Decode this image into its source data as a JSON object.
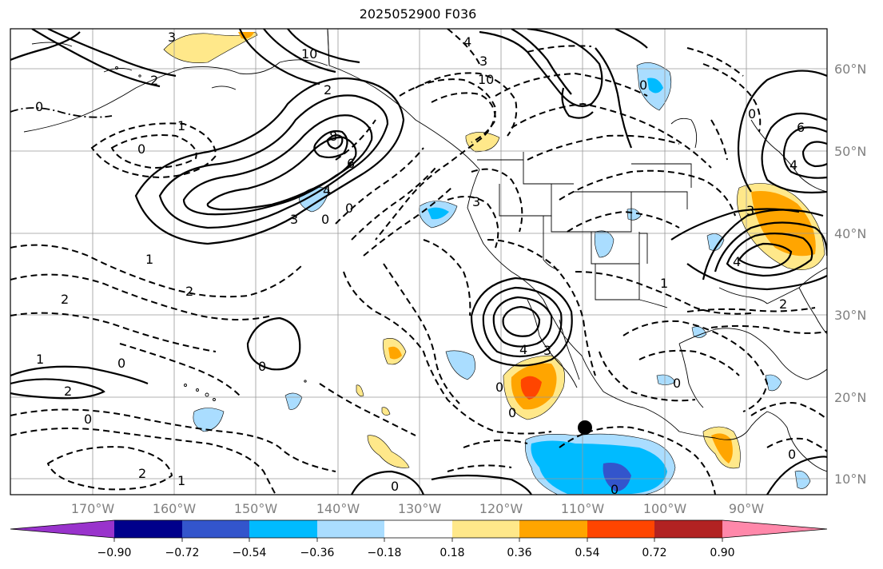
{
  "title": "2025052900 F036",
  "lon_ticks": [
    "170°W",
    "160°W",
    "150°W",
    "140°W",
    "130°W",
    "120°W",
    "110°W",
    "100°W",
    "90°W"
  ],
  "lat_ticks": [
    "60°N",
    "50°N",
    "40°N",
    "30°N",
    "20°N",
    "10°N"
  ],
  "colorbar": {
    "colors": [
      "#9933cc",
      "#00008b",
      "#3355cc",
      "#00bbff",
      "#aaddff",
      "#ffffff",
      "#ffe88a",
      "#ffa500",
      "#ff4500",
      "#b22222",
      "#ff88aa"
    ],
    "tick_labels": [
      "−0.90",
      "−0.72",
      "−0.54",
      "−0.36",
      "−0.18",
      "0.18",
      "0.36",
      "0.54",
      "0.72",
      "0.90"
    ]
  },
  "contour_labels": [
    "3",
    "10",
    "4",
    "3",
    "10",
    "2",
    "0",
    "2",
    "1",
    "8",
    "6",
    "4",
    "3",
    "0",
    "0",
    "1",
    "2",
    "2",
    "0",
    "1",
    "0",
    "2",
    "0",
    "2",
    "1",
    "0",
    "3",
    "3",
    "4",
    "0",
    "0",
    "0",
    "0",
    "2",
    "6",
    "4",
    "3",
    "4",
    "0",
    "1",
    "0",
    "0",
    "0"
  ],
  "marker": "black-dot"
}
